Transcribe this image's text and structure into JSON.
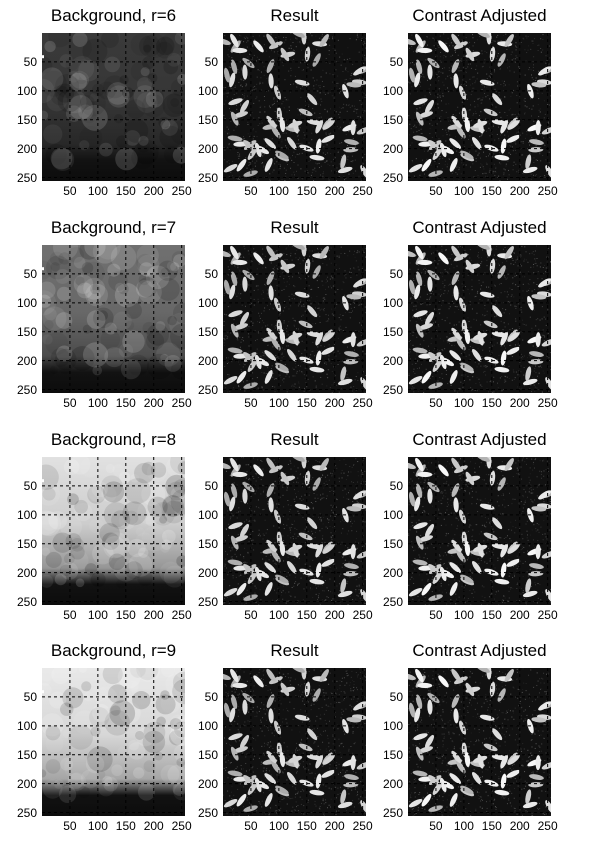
{
  "figure": {
    "rows": [
      {
        "radius_label": "r=6",
        "panels": [
          {
            "kind": "background",
            "title": "Background, r=6",
            "bright": [
              58,
              54,
              40
            ],
            "spots": true
          },
          {
            "kind": "result",
            "title": "Result"
          },
          {
            "kind": "adjusted",
            "title": "Contrast Adjusted"
          }
        ]
      },
      {
        "radius_label": "r=7",
        "panels": [
          {
            "kind": "background",
            "title": "Background, r=7",
            "bright": [
              112,
              104,
              76
            ],
            "spots": true
          },
          {
            "kind": "result",
            "title": "Result"
          },
          {
            "kind": "adjusted",
            "title": "Contrast Adjusted"
          }
        ]
      },
      {
        "radius_label": "r=8",
        "panels": [
          {
            "kind": "background",
            "title": "Background, r=8",
            "bright": [
              225,
              205,
              150
            ],
            "spots": true
          },
          {
            "kind": "result",
            "title": "Result"
          },
          {
            "kind": "adjusted",
            "title": "Contrast Adjusted"
          }
        ]
      },
      {
        "radius_label": "r=9",
        "panels": [
          {
            "kind": "background",
            "title": "Background, r=9",
            "bright": [
              232,
              215,
              165
            ],
            "spots": true
          },
          {
            "kind": "result",
            "title": "Result"
          },
          {
            "kind": "adjusted",
            "title": "Contrast Adjusted"
          }
        ]
      }
    ],
    "y_ticks": [
      "50",
      "100",
      "150",
      "200",
      "250"
    ],
    "x_ticks": [
      "50",
      "100",
      "150",
      "200",
      "250"
    ],
    "image_size": 256,
    "grid": "dashed",
    "colors": {
      "background": "#ffffff",
      "grid": "#000000",
      "text": "#000000"
    }
  }
}
